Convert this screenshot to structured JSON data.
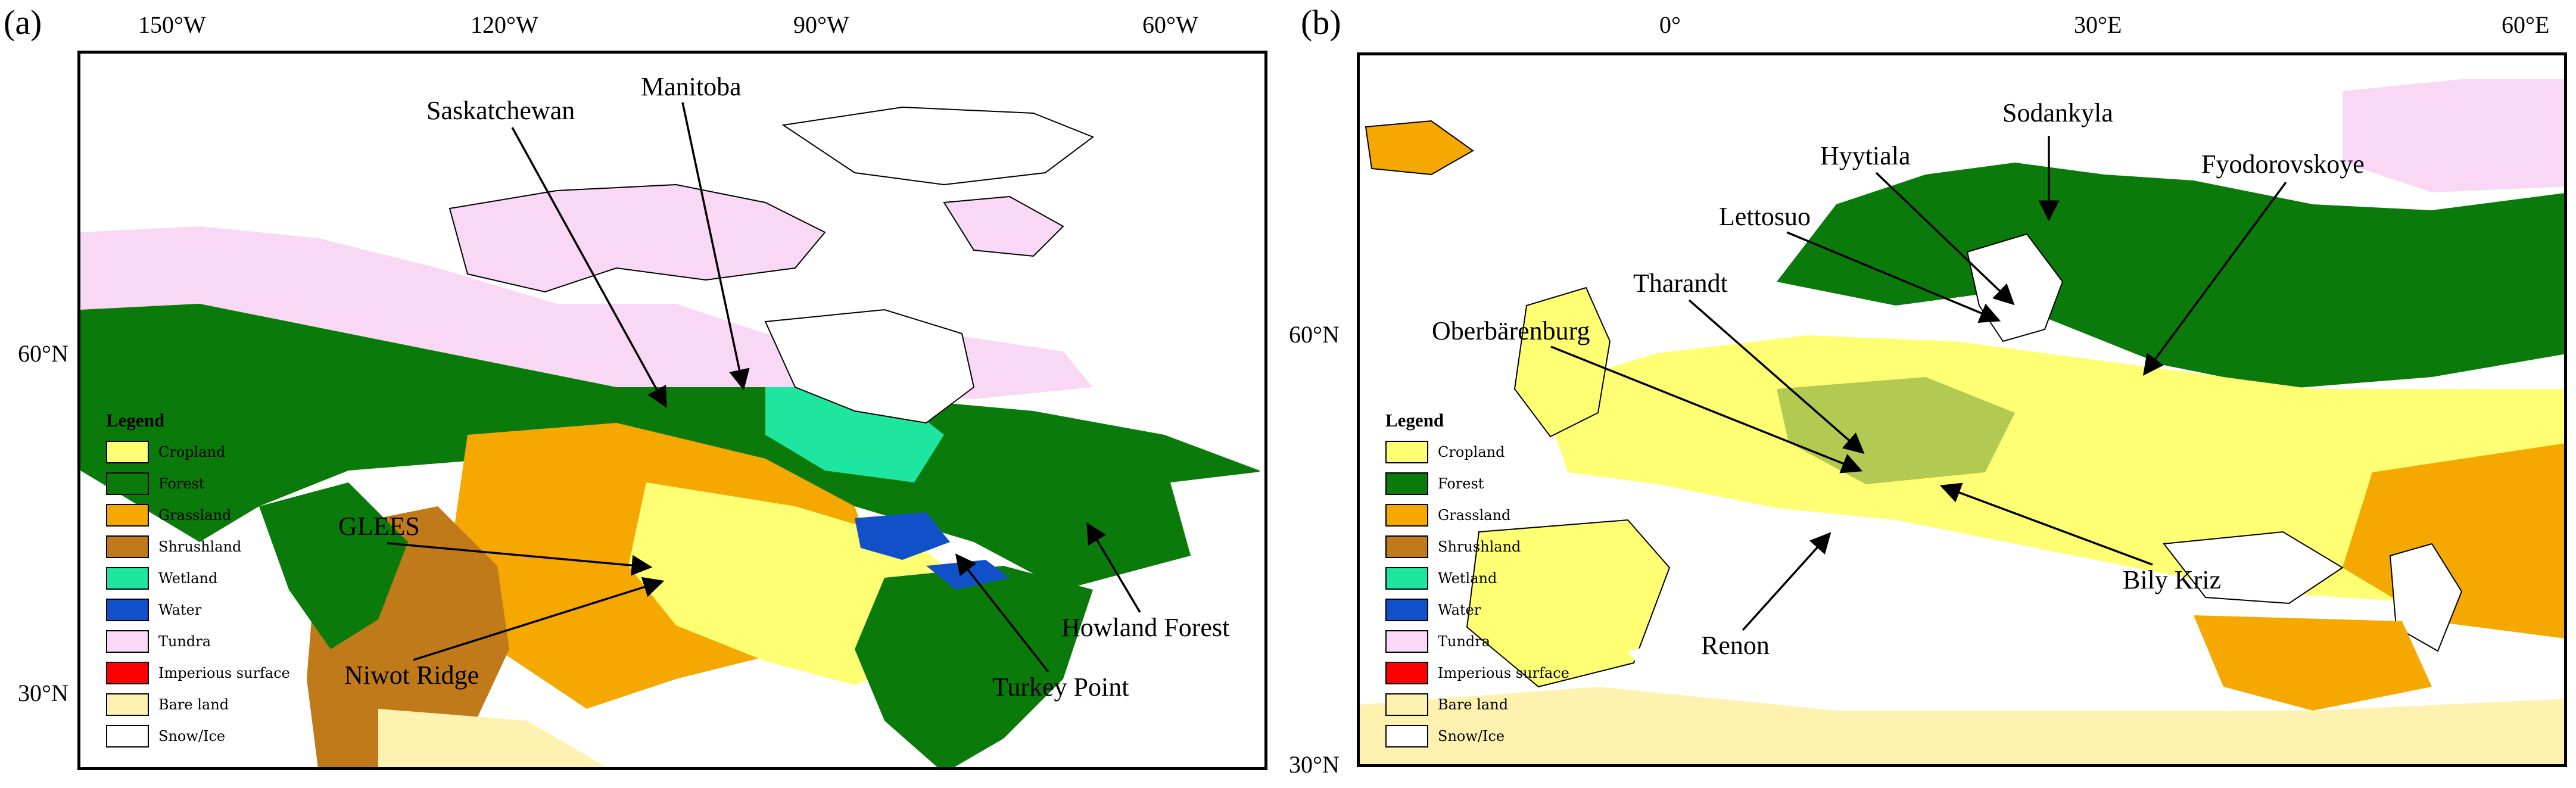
{
  "panel_a": {
    "label": "(a)",
    "lon_ticks": [
      "150°W",
      "120°W",
      "90°W",
      "60°W"
    ],
    "lat_ticks": [
      "60°N",
      "30°N"
    ],
    "sites": [
      "Saskatchewan",
      "Manitoba",
      "GLEES",
      "Niwot Ridge",
      "Howland Forest",
      "Turkey Point"
    ]
  },
  "panel_b": {
    "label": "(b)",
    "lon_ticks": [
      "0°",
      "30°E",
      "60°E"
    ],
    "lat_ticks": [
      "60°N",
      "30°N"
    ],
    "sites": [
      "Sodankyla",
      "Hyytiala",
      "Fyodorovskoye",
      "Lettosuo",
      "Tharandt",
      "Oberbärenburg",
      "Bily Kriz",
      "Renon"
    ]
  },
  "legend": {
    "title": "Legend",
    "items": [
      {
        "label": "Cropland",
        "color": "#FFFF73"
      },
      {
        "label": "Forest",
        "color": "#0A7A0A"
      },
      {
        "label": "Grassland",
        "color": "#F5A800"
      },
      {
        "label": "Shrushland",
        "color": "#C07A1A"
      },
      {
        "label": "Wetland",
        "color": "#1EE6A0"
      },
      {
        "label": "Water",
        "color": "#1050C8"
      },
      {
        "label": "Tundra",
        "color": "#F8D8F5"
      },
      {
        "label": "Imperious surface",
        "color": "#FF0000"
      },
      {
        "label": "Bare land",
        "color": "#FFF2B0"
      },
      {
        "label": "Snow/Ice",
        "color": "#FFFFFF"
      }
    ]
  }
}
